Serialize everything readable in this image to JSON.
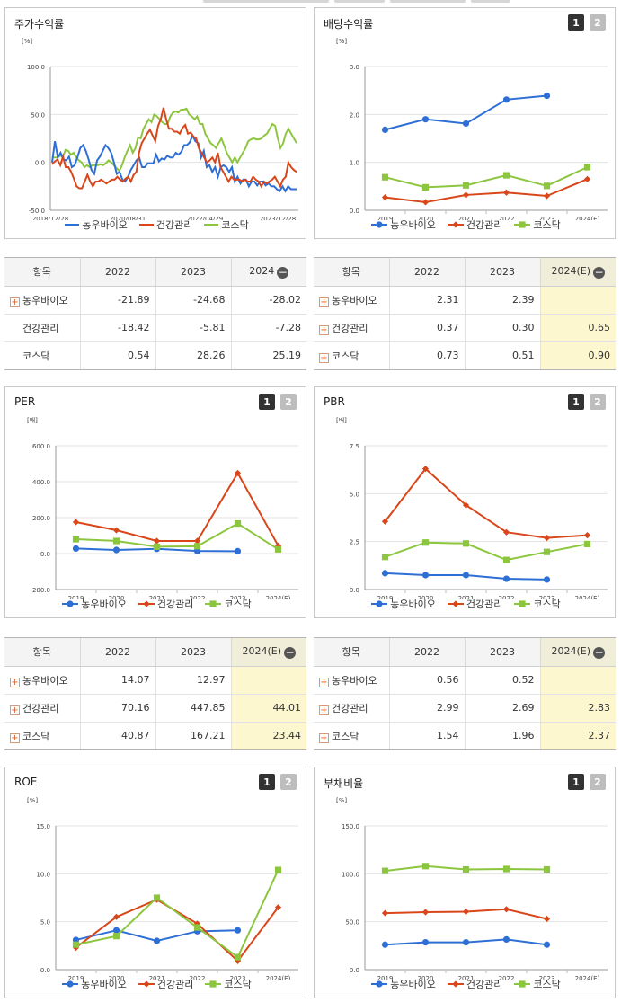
{
  "colors": {
    "series1": "#2e6fd6",
    "series2": "#d8461a",
    "series3": "#8cc63f"
  },
  "legend": [
    "농우바이오",
    "건강관리",
    "코스닥"
  ],
  "tab_labels": [
    "1",
    "2"
  ],
  "panels": {
    "stock_return": {
      "title": "주가수익률",
      "unit": "[%]",
      "chart_data": {
        "type": "line",
        "x_ticks": [
          "2018/12/28",
          "2020/08/31",
          "2022/04/29",
          "2023/12/28"
        ],
        "y_ticks": [
          "100.0",
          "50.0",
          "0.0",
          "-50.0"
        ],
        "ylim": [
          -50,
          100
        ],
        "series": [
          {
            "name": "농우바이오",
            "values": [
              0,
              22,
              5,
              10,
              3,
              2,
              6,
              -5,
              -3,
              5,
              15,
              18,
              12,
              3,
              -8,
              -12,
              2,
              6,
              12,
              18,
              15,
              10,
              0,
              -12,
              -10,
              -18,
              -20,
              -15,
              -8,
              -3,
              2,
              5,
              -5,
              -5,
              -1,
              -1,
              -1,
              8,
              1,
              4,
              3,
              7,
              5,
              5,
              10,
              8,
              11,
              18,
              18,
              21,
              28,
              22,
              20,
              5,
              12,
              -5,
              -3,
              -10,
              -5,
              -15,
              -5,
              -3,
              -5,
              -10,
              -5,
              -20,
              -15,
              -22,
              -18,
              -18,
              -25,
              -20,
              -20,
              -24,
              -20,
              -20,
              -24,
              -22,
              -25,
              -25,
              -28,
              -30,
              -25,
              -30,
              -25,
              -28,
              -28,
              -28
            ]
          },
          {
            "name": "건강관리",
            "values": [
              -2,
              1,
              3,
              -3,
              6,
              -5,
              -5,
              -10,
              -17,
              -25,
              -27,
              -27,
              -20,
              -13,
              -20,
              -25,
              -20,
              -20,
              -18,
              -20,
              -22,
              -20,
              -18,
              -18,
              -15,
              -18,
              -20,
              -17,
              -15,
              -20,
              -13,
              -10,
              10,
              20,
              25,
              30,
              34,
              28,
              22,
              38,
              45,
              57,
              45,
              35,
              35,
              32,
              32,
              30,
              36,
              39,
              30,
              31,
              27,
              25,
              15,
              10,
              5,
              0,
              2,
              5,
              0,
              10,
              -5,
              -10,
              -15,
              -20,
              -15,
              -18,
              -18,
              -18,
              -20,
              -18,
              -20,
              -20,
              -15,
              -18,
              -20,
              -25,
              -20,
              -22,
              -20,
              -18,
              -15,
              -20,
              -25,
              -18,
              -15,
              0,
              -5,
              -8,
              -10
            ]
          },
          {
            "name": "코스닥",
            "values": [
              5,
              5,
              5,
              7,
              6,
              13,
              12,
              8,
              10,
              5,
              2,
              0,
              -5,
              -3,
              -5,
              -3,
              -3,
              -3,
              -2,
              -3,
              -1,
              2,
              0,
              -3,
              -6,
              -9,
              -3,
              5,
              12,
              18,
              10,
              15,
              26,
              25,
              35,
              40,
              45,
              42,
              50,
              48,
              45,
              42,
              40,
              40,
              48,
              52,
              53,
              52,
              55,
              55,
              56,
              50,
              48,
              45,
              48,
              40,
              40,
              30,
              25,
              20,
              18,
              15,
              20,
              25,
              18,
              10,
              5,
              0,
              5,
              0,
              5,
              10,
              15,
              22,
              24,
              25,
              24,
              24,
              25,
              28,
              30,
              35,
              40,
              38,
              25,
              15,
              20,
              30,
              35,
              30,
              25,
              20
            ]
          }
        ]
      },
      "table": {
        "headers": [
          "항목",
          "2022",
          "2023",
          "2024"
        ],
        "rows": [
          {
            "name": "농우바이오",
            "values": [
              "-21.89",
              "-24.68",
              "-28.02"
            ],
            "plus": true
          },
          {
            "name": "건강관리",
            "values": [
              "-18.42",
              "-5.81",
              "-7.28"
            ],
            "plus": false
          },
          {
            "name": "코스닥",
            "values": [
              "0.54",
              "28.26",
              "25.19"
            ],
            "plus": false
          }
        ]
      }
    },
    "dividend": {
      "title": "배당수익률",
      "unit": "[%]",
      "chart_data": {
        "type": "line",
        "categories": [
          "2019",
          "2020",
          "2021",
          "2022",
          "2023",
          "2024(E)"
        ],
        "y_ticks": [
          "3.0",
          "2.0",
          "1.0",
          "0.0"
        ],
        "ylim": [
          0,
          3
        ],
        "series": [
          {
            "name": "농우바이오",
            "values": [
              1.68,
              1.9,
              1.81,
              2.31,
              2.39,
              null
            ]
          },
          {
            "name": "건강관리",
            "values": [
              0.27,
              0.17,
              0.32,
              0.37,
              0.3,
              0.65
            ]
          },
          {
            "name": "코스닥",
            "values": [
              0.69,
              0.48,
              0.52,
              0.73,
              0.51,
              0.9
            ]
          }
        ]
      },
      "table": {
        "headers": [
          "항목",
          "2022",
          "2023",
          "2024(E)"
        ],
        "rows": [
          {
            "name": "농우바이오",
            "values": [
              "2.31",
              "2.39",
              ""
            ],
            "plus": true
          },
          {
            "name": "건강관리",
            "values": [
              "0.37",
              "0.30",
              "0.65"
            ],
            "plus": true
          },
          {
            "name": "코스닥",
            "values": [
              "0.73",
              "0.51",
              "0.90"
            ],
            "plus": true
          }
        ]
      }
    },
    "per": {
      "title": "PER",
      "unit": "[배]",
      "chart_data": {
        "type": "line",
        "categories": [
          "2019",
          "2020",
          "2021",
          "2022",
          "2023",
          "2024(E)"
        ],
        "y_ticks": [
          "600.0",
          "400.0",
          "200.0",
          "0.0",
          "-200.0"
        ],
        "ylim": [
          -200,
          600
        ],
        "series": [
          {
            "name": "농우바이오",
            "values": [
              28,
              20,
              26,
              14.07,
              12.97,
              null
            ]
          },
          {
            "name": "건강관리",
            "values": [
              175,
              130,
              70,
              70.16,
              447.85,
              44.01
            ]
          },
          {
            "name": "코스닥",
            "values": [
              80,
              70,
              38,
              40.87,
              167.21,
              23.44
            ]
          }
        ]
      },
      "table": {
        "headers": [
          "항목",
          "2022",
          "2023",
          "2024(E)"
        ],
        "rows": [
          {
            "name": "농우바이오",
            "values": [
              "14.07",
              "12.97",
              ""
            ],
            "plus": true
          },
          {
            "name": "건강관리",
            "values": [
              "70.16",
              "447.85",
              "44.01"
            ],
            "plus": true
          },
          {
            "name": "코스닥",
            "values": [
              "40.87",
              "167.21",
              "23.44"
            ],
            "plus": true
          }
        ]
      }
    },
    "pbr": {
      "title": "PBR",
      "unit": "[배]",
      "chart_data": {
        "type": "line",
        "categories": [
          "2019",
          "2020",
          "2021",
          "2022",
          "2023",
          "2024(E)"
        ],
        "y_ticks": [
          "7.5",
          "5.0",
          "2.5",
          "0.0"
        ],
        "ylim": [
          0,
          7.5
        ],
        "series": [
          {
            "name": "농우바이오",
            "values": [
              0.85,
              0.75,
              0.75,
              0.56,
              0.52,
              null
            ]
          },
          {
            "name": "건강관리",
            "values": [
              3.55,
              6.3,
              4.4,
              2.99,
              2.69,
              2.83
            ]
          },
          {
            "name": "코스닥",
            "values": [
              1.7,
              2.45,
              2.4,
              1.54,
              1.96,
              2.37
            ]
          }
        ]
      },
      "table": {
        "headers": [
          "항목",
          "2022",
          "2023",
          "2024(E)"
        ],
        "rows": [
          {
            "name": "농우바이오",
            "values": [
              "0.56",
              "0.52",
              ""
            ],
            "plus": true
          },
          {
            "name": "건강관리",
            "values": [
              "2.99",
              "2.69",
              "2.83"
            ],
            "plus": true
          },
          {
            "name": "코스닥",
            "values": [
              "1.54",
              "1.96",
              "2.37"
            ],
            "plus": true
          }
        ]
      }
    },
    "roe": {
      "title": "ROE",
      "unit": "[%]",
      "chart_data": {
        "type": "line",
        "categories": [
          "2019",
          "2020",
          "2021",
          "2022",
          "2023",
          "2024(E)"
        ],
        "y_ticks": [
          "15.0",
          "10.0",
          "5.0",
          "0.0"
        ],
        "ylim": [
          0,
          15
        ],
        "series": [
          {
            "name": "농우바이오",
            "values": [
              3.1,
              4.1,
              3.0,
              4.0,
              4.1,
              null
            ]
          },
          {
            "name": "건강관리",
            "values": [
              2.3,
              5.5,
              7.3,
              4.8,
              0.9,
              6.5
            ]
          },
          {
            "name": "코스닥",
            "values": [
              2.6,
              3.5,
              7.5,
              4.4,
              1.3,
              10.4
            ]
          }
        ]
      }
    },
    "debt": {
      "title": "부채비율",
      "unit": "[%]",
      "chart_data": {
        "type": "line",
        "categories": [
          "2019",
          "2020",
          "2021",
          "2022",
          "2023",
          "2024(E)"
        ],
        "y_ticks": [
          "150.0",
          "100.0",
          "50.0",
          "0.0"
        ],
        "ylim": [
          0,
          150
        ],
        "series": [
          {
            "name": "농우바이오",
            "values": [
              26,
              28.5,
              28.5,
              31.5,
              26,
              null
            ]
          },
          {
            "name": "건강관리",
            "values": [
              59,
              60,
              60.5,
              63,
              53,
              null
            ]
          },
          {
            "name": "코스닥",
            "values": [
              103,
              108,
              104.5,
              105,
              104.5,
              null
            ]
          }
        ]
      }
    }
  }
}
